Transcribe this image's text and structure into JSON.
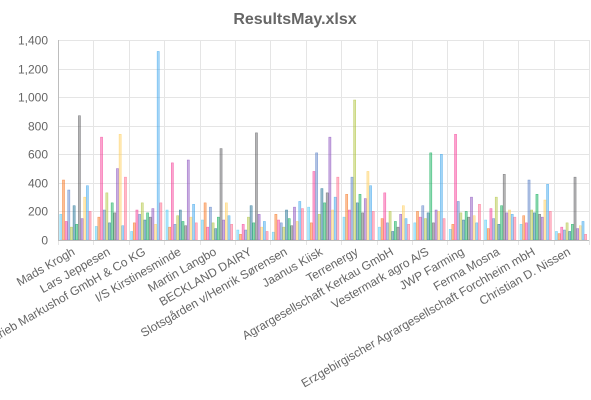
{
  "chart_data": {
    "type": "bar",
    "title": "ResultsMay.xlsx",
    "xlabel": "",
    "ylabel": "",
    "ylim": [
      0,
      1400
    ],
    "yticks": [
      "0",
      "200",
      "400",
      "600",
      "800",
      "1,000",
      "1,200",
      "1,400"
    ],
    "ytick_values": [
      0,
      200,
      400,
      600,
      800,
      1000,
      1200,
      1400
    ],
    "grid": true,
    "legend": "none",
    "categories": [
      "Mads Krogh",
      "Lars Jeppesen",
      "Landwirtschaftsbetrieb Markushof GmbH & Co KG",
      "I/S Kirstinesminde",
      "Martin Langbo",
      "BECKLAND DAIRY",
      "Slotsgården v/Henrik Sørensen",
      "Jaanus Kiisk",
      "Terrenergy",
      "Agrargesellschaft Kerkau GmbH",
      "Vestermark agro A/S",
      "JWP Farming",
      "Ferma Mosna",
      "Erzgebirgischer Agrargesellschaft Forchheim mbH",
      "Christian D. Nissen"
    ],
    "series_colors": [
      "#4dc9f6",
      "#f67019",
      "#f53794",
      "#537bc4",
      "#acc236",
      "#166a8f",
      "#00a950",
      "#58595b",
      "#8549ba",
      "#ffcd56",
      "#36a2eb",
      "#ff6384"
    ],
    "series": [
      {
        "values": [
          180,
          95,
          60,
          210,
          140,
          70,
          55,
          230,
          160,
          90,
          120,
          75,
          140,
          110,
          60
        ]
      },
      {
        "values": [
          420,
          160,
          120,
          90,
          260,
          40,
          180,
          120,
          320,
          150,
          200,
          110,
          80,
          170,
          45
        ]
      },
      {
        "values": [
          130,
          720,
          210,
          540,
          90,
          110,
          140,
          480,
          210,
          330,
          160,
          740,
          220,
          120,
          90
        ]
      },
      {
        "values": [
          350,
          210,
          180,
          110,
          230,
          70,
          120,
          610,
          440,
          120,
          240,
          270,
          150,
          420,
          70
        ]
      },
      {
        "values": [
          90,
          330,
          260,
          170,
          120,
          160,
          90,
          180,
          980,
          200,
          150,
          190,
          300,
          210,
          120
        ]
      },
      {
        "values": [
          240,
          120,
          140,
          210,
          80,
          240,
          210,
          360,
          260,
          60,
          190,
          140,
          110,
          190,
          60
        ]
      },
      {
        "values": [
          110,
          260,
          190,
          130,
          160,
          120,
          150,
          260,
          320,
          130,
          610,
          200,
          240,
          320,
          110
        ]
      },
      {
        "values": [
          870,
          190,
          160,
          100,
          640,
          750,
          100,
          330,
          190,
          90,
          120,
          160,
          460,
          180,
          440
        ]
      },
      {
        "values": [
          150,
          500,
          220,
          560,
          140,
          180,
          230,
          720,
          290,
          180,
          210,
          300,
          190,
          160,
          80
        ]
      },
      {
        "values": [
          300,
          740,
          110,
          160,
          260,
          90,
          130,
          210,
          480,
          240,
          200,
          170,
          210,
          280,
          100
        ]
      },
      {
        "values": [
          380,
          100,
          1320,
          250,
          170,
          130,
          270,
          300,
          380,
          150,
          600,
          120,
          180,
          390,
          130
        ]
      },
      {
        "values": [
          200,
          440,
          260,
          120,
          110,
          60,
          220,
          440,
          200,
          110,
          150,
          250,
          160,
          200,
          40
        ]
      }
    ]
  }
}
